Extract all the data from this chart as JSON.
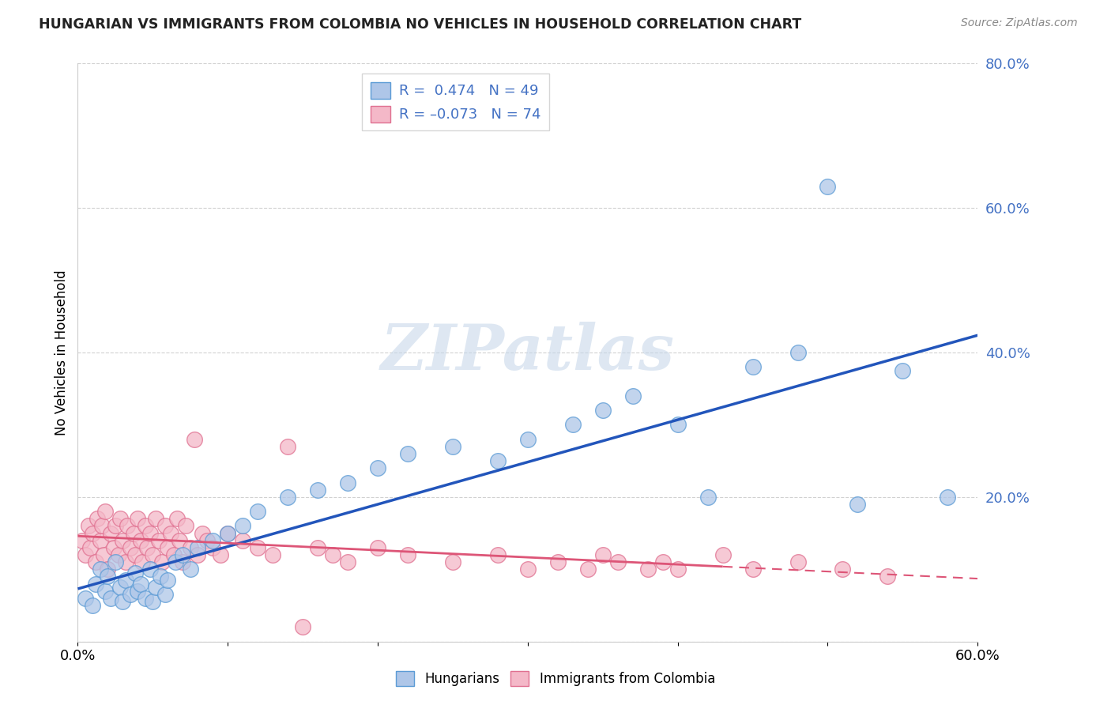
{
  "title": "HUNGARIAN VS IMMIGRANTS FROM COLOMBIA NO VEHICLES IN HOUSEHOLD CORRELATION CHART",
  "source": "Source: ZipAtlas.com",
  "ylabel": "No Vehicles in Household",
  "xlim": [
    0.0,
    0.6
  ],
  "ylim": [
    0.0,
    0.8
  ],
  "blue_R": 0.474,
  "blue_N": 49,
  "pink_R": -0.073,
  "pink_N": 74,
  "blue_color": "#aec6e8",
  "blue_edge": "#5b9bd5",
  "pink_color": "#f4b8c8",
  "pink_edge": "#e07090",
  "blue_line_color": "#2255bb",
  "pink_line_color": "#dd5577",
  "watermark_color": "#c8d8ea",
  "tick_color": "#4472c4",
  "legend_labels": [
    "Hungarians",
    "Immigrants from Colombia"
  ],
  "blue_scatter_x": [
    0.005,
    0.01,
    0.012,
    0.015,
    0.018,
    0.02,
    0.022,
    0.025,
    0.028,
    0.03,
    0.032,
    0.035,
    0.038,
    0.04,
    0.042,
    0.045,
    0.048,
    0.05,
    0.052,
    0.055,
    0.058,
    0.06,
    0.065,
    0.07,
    0.075,
    0.08,
    0.09,
    0.1,
    0.11,
    0.12,
    0.14,
    0.16,
    0.18,
    0.2,
    0.22,
    0.25,
    0.28,
    0.3,
    0.33,
    0.35,
    0.37,
    0.4,
    0.42,
    0.45,
    0.48,
    0.5,
    0.52,
    0.55,
    0.58
  ],
  "blue_scatter_y": [
    0.06,
    0.05,
    0.08,
    0.1,
    0.07,
    0.09,
    0.06,
    0.11,
    0.075,
    0.055,
    0.085,
    0.065,
    0.095,
    0.07,
    0.08,
    0.06,
    0.1,
    0.055,
    0.075,
    0.09,
    0.065,
    0.085,
    0.11,
    0.12,
    0.1,
    0.13,
    0.14,
    0.15,
    0.16,
    0.18,
    0.2,
    0.21,
    0.22,
    0.24,
    0.26,
    0.27,
    0.25,
    0.28,
    0.3,
    0.32,
    0.34,
    0.3,
    0.2,
    0.38,
    0.4,
    0.63,
    0.19,
    0.375,
    0.2
  ],
  "pink_scatter_x": [
    0.003,
    0.005,
    0.007,
    0.008,
    0.01,
    0.012,
    0.013,
    0.015,
    0.016,
    0.017,
    0.018,
    0.02,
    0.022,
    0.024,
    0.025,
    0.027,
    0.028,
    0.03,
    0.032,
    0.033,
    0.035,
    0.037,
    0.038,
    0.04,
    0.042,
    0.043,
    0.045,
    0.046,
    0.048,
    0.05,
    0.052,
    0.054,
    0.056,
    0.058,
    0.06,
    0.062,
    0.064,
    0.066,
    0.068,
    0.07,
    0.072,
    0.075,
    0.078,
    0.08,
    0.083,
    0.086,
    0.09,
    0.095,
    0.1,
    0.11,
    0.12,
    0.13,
    0.14,
    0.15,
    0.16,
    0.17,
    0.18,
    0.2,
    0.22,
    0.25,
    0.28,
    0.3,
    0.32,
    0.34,
    0.35,
    0.36,
    0.38,
    0.39,
    0.4,
    0.43,
    0.45,
    0.48,
    0.51,
    0.54
  ],
  "pink_scatter_y": [
    0.14,
    0.12,
    0.16,
    0.13,
    0.15,
    0.11,
    0.17,
    0.14,
    0.16,
    0.12,
    0.18,
    0.1,
    0.15,
    0.13,
    0.16,
    0.12,
    0.17,
    0.14,
    0.11,
    0.16,
    0.13,
    0.15,
    0.12,
    0.17,
    0.14,
    0.11,
    0.16,
    0.13,
    0.15,
    0.12,
    0.17,
    0.14,
    0.11,
    0.16,
    0.13,
    0.15,
    0.12,
    0.17,
    0.14,
    0.11,
    0.16,
    0.13,
    0.28,
    0.12,
    0.15,
    0.14,
    0.13,
    0.12,
    0.15,
    0.14,
    0.13,
    0.12,
    0.27,
    0.02,
    0.13,
    0.12,
    0.11,
    0.13,
    0.12,
    0.11,
    0.12,
    0.1,
    0.11,
    0.1,
    0.12,
    0.11,
    0.1,
    0.11,
    0.1,
    0.12,
    0.1,
    0.11,
    0.1,
    0.09
  ]
}
